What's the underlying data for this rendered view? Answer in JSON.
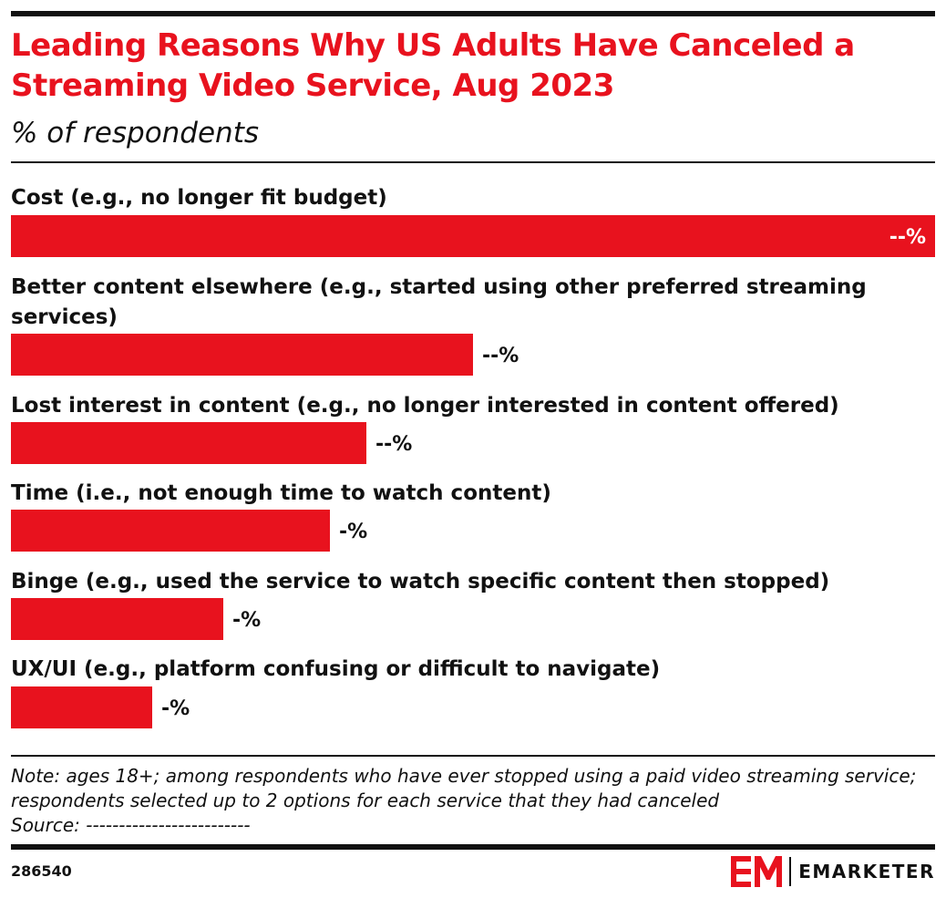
{
  "chart_data": {
    "type": "bar",
    "orientation": "horizontal",
    "title": "Leading Reasons Why US Adults Have Canceled a Streaming Video Service, Aug 2023",
    "subtitle": "% of respondents",
    "categories": [
      "Cost (e.g., no longer fit budget)",
      "Better content elsewhere (e.g., started using other preferred streaming services)",
      "Lost interest in content (e.g., no longer interested in content offered)",
      "Time (i.e., not enough time to watch content)",
      "Binge (e.g., used the service to watch specific content then stopped)",
      "UX/UI (e.g., platform confusing or difficult to navigate)"
    ],
    "values": [
      1.0,
      0.5,
      0.385,
      0.345,
      0.23,
      0.153
    ],
    "value_labels": [
      "--%",
      "--%",
      "--%",
      "-%",
      "-%",
      "-%"
    ],
    "bar_color": "#e8121e",
    "grid": false,
    "legend": "none"
  },
  "note": "Note: ages 18+; among respondents who have ever stopped using a paid video streaming service; respondents selected up to 2 options for each service that they had canceled",
  "source": "Source: -------------------------",
  "chart_id": "286540",
  "brand": {
    "name": "EMARKETER",
    "color": "#e8121e",
    "logo_icon": "em-logo-icon"
  }
}
